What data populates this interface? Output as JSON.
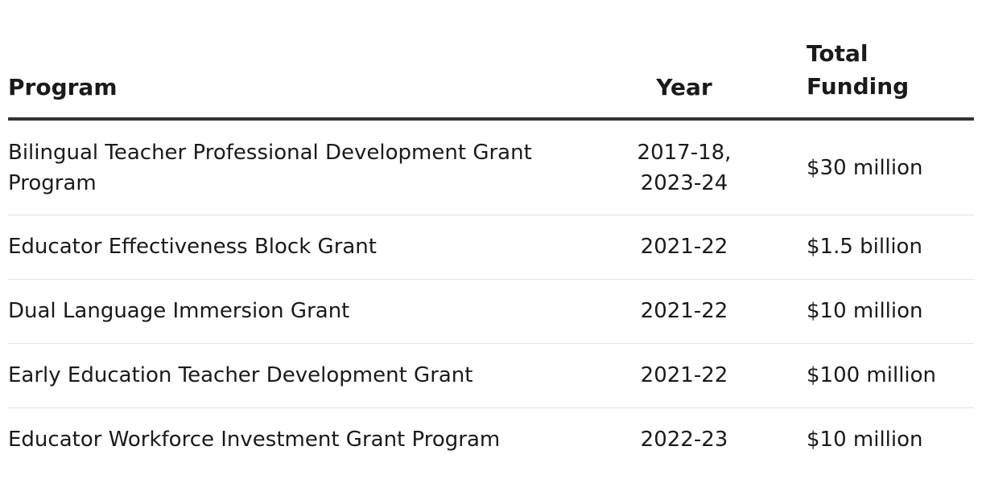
{
  "table": {
    "headers": {
      "program": "Program",
      "year": "Year",
      "funding": "Total Funding"
    },
    "rows": [
      {
        "program": "Bilingual Teacher Professional Development Grant Program",
        "year": "2017-18, 2023-24",
        "funding": "$30 million"
      },
      {
        "program": "Educator Effectiveness Block Grant",
        "year": "2021-22",
        "funding": "$1.5 billion"
      },
      {
        "program": "Dual Language Immersion Grant",
        "year": "2021-22",
        "funding": "$10 million"
      },
      {
        "program": "Early Education Teacher Development Grant",
        "year": "2021-22",
        "funding": "$100 million"
      },
      {
        "program": "Educator Workforce Investment Grant Program",
        "year": "2022-23",
        "funding": "$10 million"
      }
    ]
  }
}
